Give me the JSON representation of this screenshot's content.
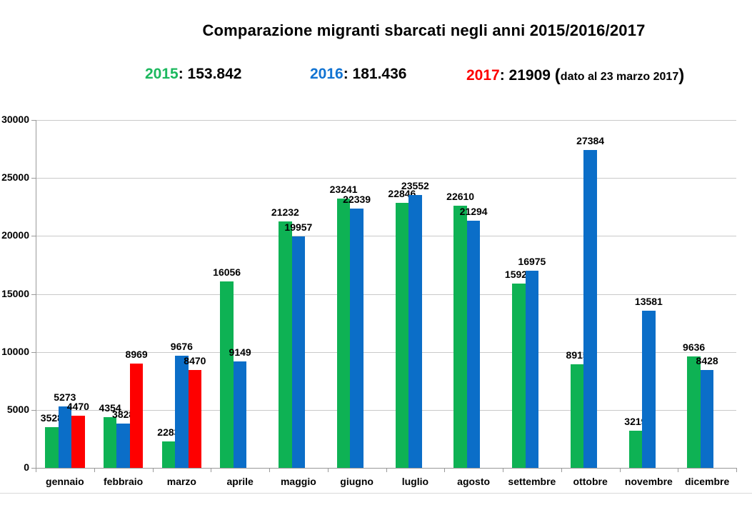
{
  "title": "Comparazione migranti sbarcati negli anni 2015/2016/2017",
  "legend": {
    "items": [
      {
        "year": "2015",
        "sep": ": ",
        "total": "153.842",
        "color": "#1cb85e",
        "note": null
      },
      {
        "year": "2016",
        "sep": ": ",
        "total": "181.436",
        "color": "#1173d2",
        "note": null
      },
      {
        "year": "2017",
        "sep": ": ",
        "total": "21909",
        "color": "#fe0000",
        "note_open": "(",
        "note": "dato al 23 marzo 2017",
        "note_close": ")"
      }
    ]
  },
  "chart_data": {
    "type": "bar",
    "title": "Comparazione migranti sbarcati negli anni 2015/2016/2017",
    "categories": [
      "gennaio",
      "febbraio",
      "marzo",
      "aprile",
      "maggio",
      "giugno",
      "luglio",
      "agosto",
      "settembre",
      "ottobre",
      "novembre",
      "dicembre"
    ],
    "series": [
      {
        "name": "2015",
        "color": "#0eb254",
        "values": [
          3528,
          4354,
          2283,
          16056,
          21232,
          23241,
          22846,
          22610,
          15922,
          8915,
          3219,
          9636
        ]
      },
      {
        "name": "2016",
        "color": "#0b6ec8",
        "values": [
          5273,
          3828,
          9676,
          9149,
          19957,
          22339,
          23552,
          21294,
          16975,
          27384,
          13581,
          8428
        ]
      },
      {
        "name": "2017",
        "color": "#fe0000",
        "values": [
          4470,
          8969,
          8470,
          null,
          null,
          null,
          null,
          null,
          null,
          null,
          null,
          null
        ]
      }
    ],
    "ylim": [
      0,
      30000
    ],
    "yticks": [
      0,
      5000,
      10000,
      15000,
      20000,
      25000,
      30000
    ],
    "xlabel": "",
    "ylabel": "",
    "grid": true,
    "data_labels": true,
    "legend_position": "top"
  },
  "style_colors": {
    "gridline": "#c9c9c9",
    "axis": "#999999",
    "bottom_border": "#d9d9d9"
  }
}
